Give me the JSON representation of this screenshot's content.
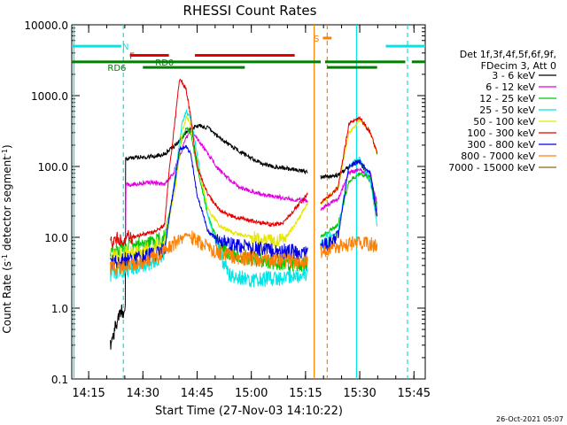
{
  "chart_data": {
    "type": "line",
    "title": "RHESSI Count Rates",
    "xlabel": "Start Time (27-Nov-03 14:10:22)",
    "ylabel_parts": [
      "Count Rate (s",
      "-1",
      " detector segment",
      "-1",
      ")"
    ],
    "y_scale": "log",
    "ylim": [
      0.1,
      10000
    ],
    "xlim_hours": [
      14.172,
      15.802
    ],
    "x_ticks": [
      {
        "t": 14.25,
        "label": "14:15"
      },
      {
        "t": 14.5,
        "label": "14:30"
      },
      {
        "t": 14.75,
        "label": "14:45"
      },
      {
        "t": 15.0,
        "label": "15:00"
      },
      {
        "t": 15.25,
        "label": "15:15"
      },
      {
        "t": 15.5,
        "label": "15:30"
      },
      {
        "t": 15.75,
        "label": "15:45"
      }
    ],
    "y_ticks": [
      {
        "v": 0.1,
        "label": "0.1"
      },
      {
        "v": 1,
        "label": "1.0"
      },
      {
        "v": 10,
        "label": "10.0"
      },
      {
        "v": 100,
        "label": "100.0"
      },
      {
        "v": 1000,
        "label": "1000.0"
      },
      {
        "v": 10000,
        "label": "10000.0"
      }
    ],
    "legend_header": [
      "Det 1f,3f,4f,5f,6f,9f,",
      "FDecim 3, Att 0"
    ],
    "series": [
      {
        "name": "3 - 6 keV",
        "color": "#000000",
        "points": [
          [
            14.35,
            0.3
          ],
          [
            14.37,
            0.5
          ],
          [
            14.39,
            0.8
          ],
          [
            14.42,
            1.0
          ],
          [
            14.42,
            130
          ],
          [
            14.55,
            140
          ],
          [
            14.6,
            150
          ],
          [
            14.65,
            200
          ],
          [
            14.7,
            300
          ],
          [
            14.75,
            380
          ],
          [
            14.8,
            350
          ],
          [
            14.85,
            260
          ],
          [
            14.9,
            200
          ],
          [
            14.95,
            160
          ],
          [
            15.0,
            130
          ],
          [
            15.05,
            110
          ],
          [
            15.1,
            100
          ],
          [
            15.15,
            95
          ],
          [
            15.2,
            90
          ],
          [
            15.26,
            85
          ],
          [
            15.26,
            1.0
          ]
        ]
      },
      {
        "name": "6 - 12 keV",
        "color": "#e100e1",
        "points": [
          [
            14.42,
            10
          ],
          [
            14.42,
            55
          ],
          [
            14.5,
            58
          ],
          [
            14.55,
            60
          ],
          [
            14.6,
            55
          ],
          [
            14.64,
            80
          ],
          [
            14.7,
            250
          ],
          [
            14.72,
            320
          ],
          [
            14.75,
            250
          ],
          [
            14.8,
            150
          ],
          [
            14.85,
            90
          ],
          [
            14.9,
            65
          ],
          [
            14.95,
            50
          ],
          [
            15.0,
            45
          ],
          [
            15.05,
            40
          ],
          [
            15.1,
            38
          ],
          [
            15.15,
            36
          ],
          [
            15.2,
            34
          ],
          [
            15.26,
            33
          ]
        ]
      },
      {
        "name": "12 - 25 keV",
        "color": "#00c800",
        "points": [
          [
            14.35,
            6
          ],
          [
            14.4,
            7
          ],
          [
            14.45,
            7.5
          ],
          [
            14.5,
            8
          ],
          [
            14.55,
            8.5
          ],
          [
            14.6,
            10
          ],
          [
            14.65,
            60
          ],
          [
            14.68,
            250
          ],
          [
            14.7,
            350
          ],
          [
            14.72,
            300
          ],
          [
            14.75,
            100
          ],
          [
            14.8,
            20
          ],
          [
            14.85,
            8
          ],
          [
            14.9,
            6
          ],
          [
            15.0,
            5
          ],
          [
            15.1,
            4.5
          ],
          [
            15.2,
            4.2
          ],
          [
            15.26,
            4
          ]
        ]
      },
      {
        "name": "25 - 50 keV",
        "color": "#00e6e6",
        "points": [
          [
            14.35,
            3
          ],
          [
            14.4,
            3.3
          ],
          [
            14.45,
            3.6
          ],
          [
            14.5,
            4
          ],
          [
            14.55,
            4.5
          ],
          [
            14.6,
            6
          ],
          [
            14.65,
            80
          ],
          [
            14.68,
            400
          ],
          [
            14.7,
            600
          ],
          [
            14.72,
            500
          ],
          [
            14.75,
            150
          ],
          [
            14.8,
            20
          ],
          [
            14.85,
            6
          ],
          [
            14.9,
            3
          ],
          [
            15.0,
            2.5
          ],
          [
            15.1,
            2.6
          ],
          [
            15.2,
            2.8
          ],
          [
            15.26,
            3
          ]
        ]
      },
      {
        "name": "50 - 100 keV",
        "color": "#e6e600",
        "points": [
          [
            14.35,
            5.5
          ],
          [
            14.4,
            5.8
          ],
          [
            14.45,
            6
          ],
          [
            14.5,
            6.5
          ],
          [
            14.55,
            7
          ],
          [
            14.6,
            9
          ],
          [
            14.65,
            50
          ],
          [
            14.68,
            300
          ],
          [
            14.7,
            500
          ],
          [
            14.72,
            400
          ],
          [
            14.75,
            120
          ],
          [
            14.8,
            25
          ],
          [
            14.85,
            15
          ],
          [
            14.9,
            12
          ],
          [
            15.0,
            10
          ],
          [
            15.1,
            8.5
          ],
          [
            15.15,
            9
          ],
          [
            15.2,
            15
          ],
          [
            15.26,
            30
          ]
        ]
      },
      {
        "name": "100 - 300 keV",
        "color": "#e60000",
        "points": [
          [
            14.35,
            9
          ],
          [
            14.4,
            9.5
          ],
          [
            14.45,
            10
          ],
          [
            14.5,
            11
          ],
          [
            14.55,
            12
          ],
          [
            14.6,
            15
          ],
          [
            14.62,
            80
          ],
          [
            14.65,
            500
          ],
          [
            14.67,
            1800
          ],
          [
            14.7,
            1200
          ],
          [
            14.72,
            500
          ],
          [
            14.75,
            100
          ],
          [
            14.8,
            40
          ],
          [
            14.85,
            25
          ],
          [
            14.9,
            20
          ],
          [
            15.0,
            17
          ],
          [
            15.1,
            15
          ],
          [
            15.15,
            16
          ],
          [
            15.2,
            25
          ],
          [
            15.26,
            40
          ]
        ]
      },
      {
        "name": "300 - 800 keV",
        "color": "#0000e6",
        "points": [
          [
            14.35,
            4.5
          ],
          [
            14.4,
            4.8
          ],
          [
            14.45,
            5
          ],
          [
            14.5,
            5.3
          ],
          [
            14.55,
            5.6
          ],
          [
            14.6,
            7
          ],
          [
            14.65,
            70
          ],
          [
            14.67,
            180
          ],
          [
            14.7,
            190
          ],
          [
            14.72,
            150
          ],
          [
            14.75,
            40
          ],
          [
            14.8,
            12
          ],
          [
            14.85,
            9
          ],
          [
            14.9,
            8
          ],
          [
            15.0,
            7
          ],
          [
            15.1,
            6.5
          ],
          [
            15.2,
            6.2
          ],
          [
            15.26,
            6
          ]
        ]
      },
      {
        "name": "800 - 7000 keV",
        "color": "#ff8000",
        "points": [
          [
            14.35,
            3.5
          ],
          [
            14.4,
            3.8
          ],
          [
            14.45,
            4
          ],
          [
            14.5,
            4.5
          ],
          [
            14.55,
            5
          ],
          [
            14.6,
            6
          ],
          [
            14.65,
            8.5
          ],
          [
            14.7,
            11
          ],
          [
            14.75,
            9
          ],
          [
            14.8,
            7
          ],
          [
            14.85,
            6
          ],
          [
            14.9,
            5.5
          ],
          [
            15.0,
            5
          ],
          [
            15.1,
            4.8
          ],
          [
            15.2,
            4.6
          ],
          [
            15.26,
            4.5
          ]
        ]
      },
      {
        "name": "7000 - 15000 keV",
        "color": "#8b6914",
        "points": []
      }
    ],
    "post_gap": {
      "start": 15.32,
      "end": 15.58,
      "curves": [
        {
          "color": "#000000",
          "points": [
            [
              15.32,
              70
            ],
            [
              15.4,
              75
            ],
            [
              15.45,
              100
            ],
            [
              15.5,
              120
            ],
            [
              15.55,
              60
            ],
            [
              15.58,
              20
            ]
          ]
        },
        {
          "color": "#e100e1",
          "points": [
            [
              15.32,
              25
            ],
            [
              15.4,
              35
            ],
            [
              15.45,
              80
            ],
            [
              15.5,
              90
            ],
            [
              15.55,
              70
            ],
            [
              15.58,
              30
            ]
          ]
        },
        {
          "color": "#00c800",
          "points": [
            [
              15.32,
              10
            ],
            [
              15.4,
              15
            ],
            [
              15.45,
              60
            ],
            [
              15.5,
              80
            ],
            [
              15.55,
              70
            ],
            [
              15.58,
              25
            ]
          ]
        },
        {
          "color": "#00e6e6",
          "points": [
            [
              15.32,
              8
            ],
            [
              15.4,
              12
            ],
            [
              15.45,
              100
            ],
            [
              15.5,
              130
            ],
            [
              15.55,
              60
            ],
            [
              15.58,
              15
            ]
          ]
        },
        {
          "color": "#e6e600",
          "points": [
            [
              15.32,
              30
            ],
            [
              15.4,
              50
            ],
            [
              15.45,
              300
            ],
            [
              15.5,
              450
            ],
            [
              15.55,
              300
            ],
            [
              15.58,
              150
            ]
          ]
        },
        {
          "color": "#e60000",
          "points": [
            [
              15.32,
              30
            ],
            [
              15.4,
              50
            ],
            [
              15.45,
              400
            ],
            [
              15.5,
              480
            ],
            [
              15.55,
              300
            ],
            [
              15.58,
              150
            ]
          ]
        },
        {
          "color": "#0000e6",
          "points": [
            [
              15.32,
              7
            ],
            [
              15.4,
              10
            ],
            [
              15.45,
              100
            ],
            [
              15.5,
              120
            ],
            [
              15.55,
              80
            ],
            [
              15.58,
              20
            ]
          ]
        },
        {
          "color": "#ff8000",
          "points": [
            [
              15.32,
              6.5
            ],
            [
              15.4,
              7.5
            ],
            [
              15.45,
              8
            ],
            [
              15.5,
              8.5
            ],
            [
              15.55,
              8
            ],
            [
              15.58,
              7.5
            ]
          ]
        }
      ]
    },
    "flag_bars": [
      {
        "label": "N",
        "label_t": 14.42,
        "y": 5000,
        "color": "#00e6e6",
        "segments": [
          [
            14.172,
            14.4
          ],
          [
            15.62,
            15.802
          ]
        ]
      },
      {
        "label": "F",
        "label_t": 14.45,
        "y": 3700,
        "color": "#e60000",
        "segments": [
          [
            14.44,
            14.62
          ],
          [
            14.74,
            15.2
          ]
        ]
      },
      {
        "label": "RD0",
        "label_t": 14.6,
        "y": 3000,
        "color": "#008000",
        "segments": [
          [
            14.172,
            15.32
          ],
          [
            15.34,
            15.71
          ],
          [
            15.74,
            15.802
          ]
        ]
      },
      {
        "label": "RD6",
        "label_t": 14.38,
        "y": 2500,
        "color": "#008000",
        "segments": [
          [
            14.5,
            14.97
          ],
          [
            15.35,
            15.58
          ]
        ]
      },
      {
        "label": "S",
        "label_t": 15.3,
        "y": 6500,
        "color": "#ff8000",
        "segments": [
          [
            15.33,
            15.37
          ]
        ]
      }
    ],
    "vertical_lines": [
      {
        "t": 14.182,
        "color": "#00e6e6",
        "style": "solid"
      },
      {
        "t": 14.41,
        "color": "#00e6e6",
        "style": "dashed"
      },
      {
        "t": 15.29,
        "color": "#ff8000",
        "style": "solid"
      },
      {
        "t": 15.35,
        "color": "#ff8000",
        "style": "dashed"
      },
      {
        "t": 15.485,
        "color": "#00e6e6",
        "style": "solid"
      },
      {
        "t": 15.72,
        "color": "#00e6e6",
        "style": "dashed"
      }
    ],
    "timestamp": "26-Oct-2021 05:07"
  }
}
